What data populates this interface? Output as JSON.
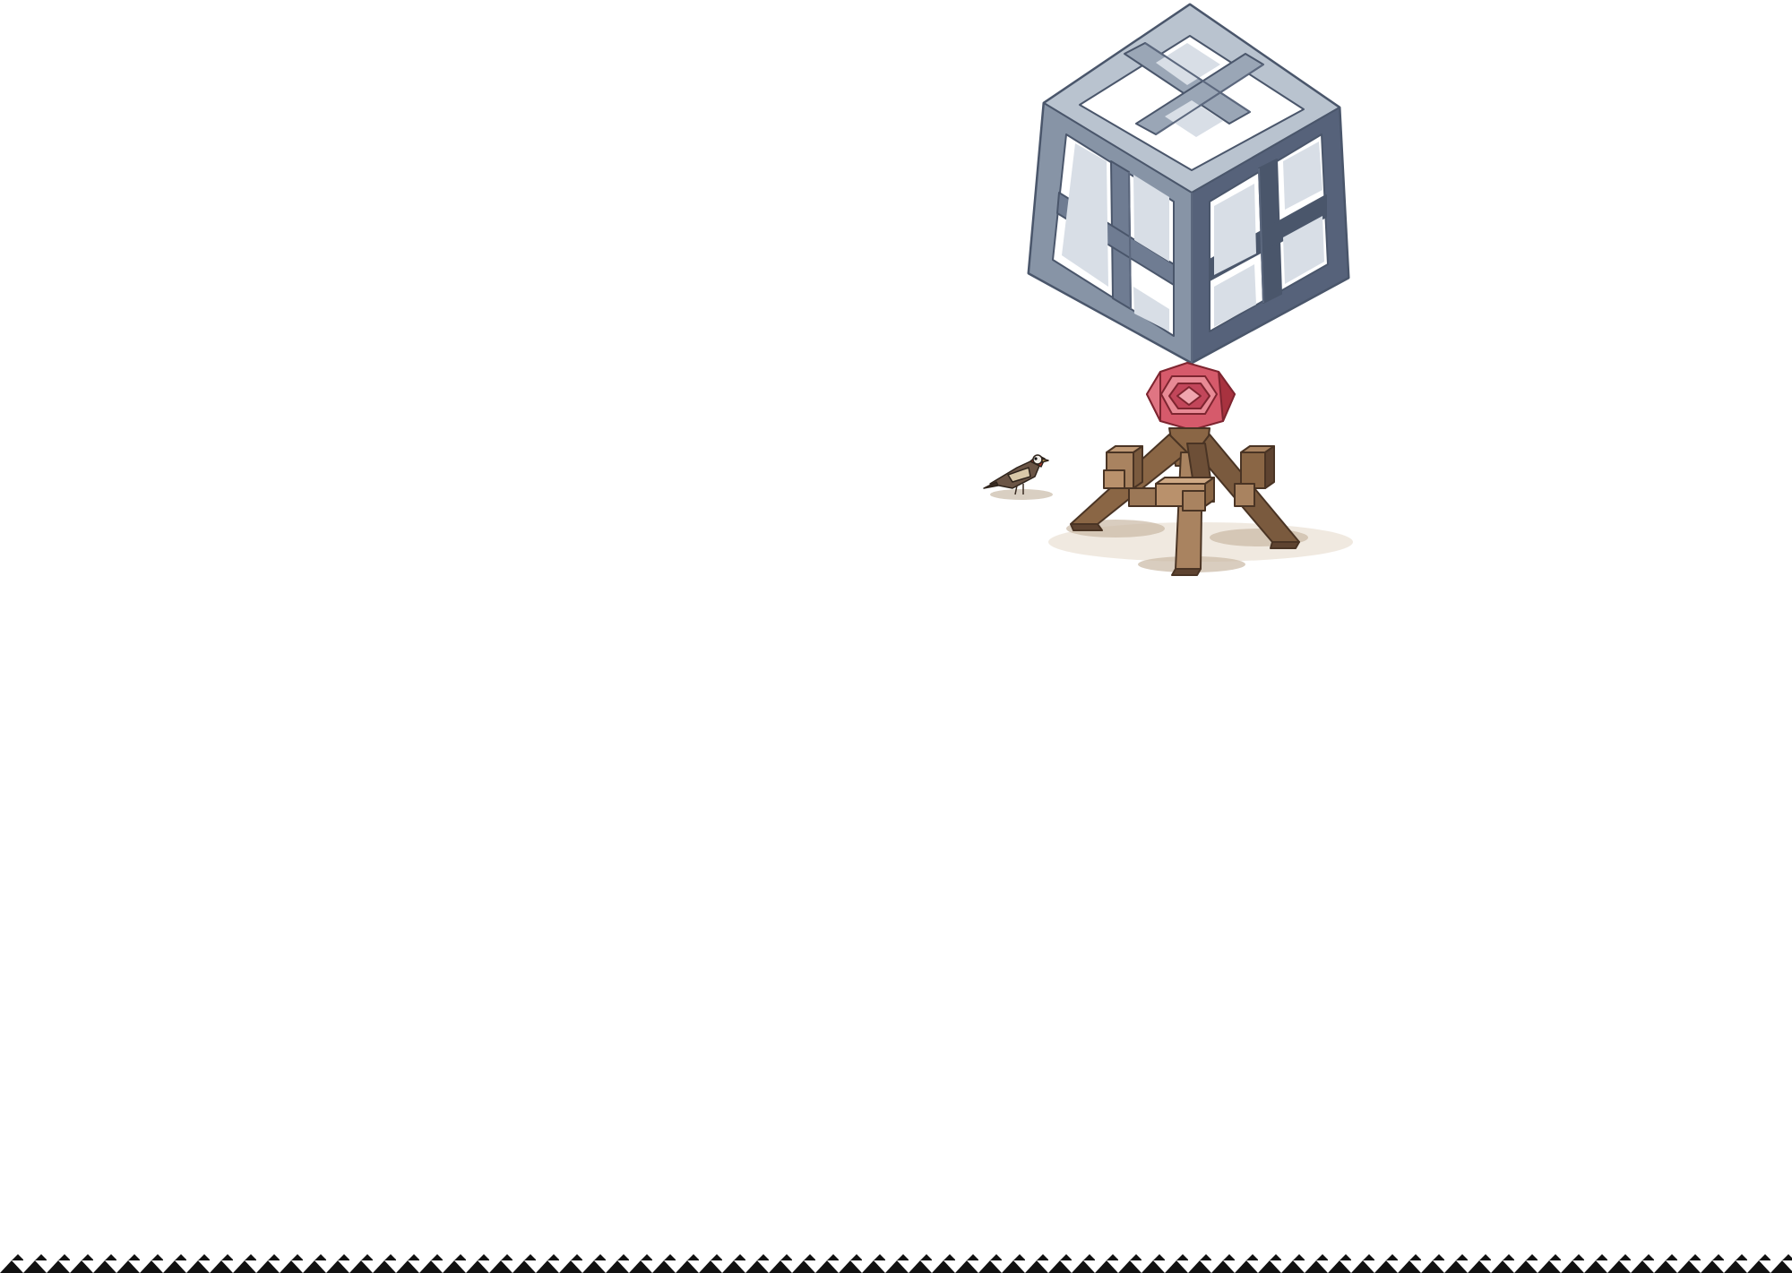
{
  "scene": {
    "main_subject": "lattice-cube-on-wooden-stand",
    "elements": [
      "lattice-cube",
      "red-crystal-knob",
      "wooden-stand",
      "small-bird"
    ],
    "colors": {
      "background": "#ffffff",
      "cube_light": "#b9c3cf",
      "cube_mid": "#8794a6",
      "cube_dark": "#56627a",
      "crystal_light": "#e88a95",
      "crystal_mid": "#d65a6b",
      "crystal_dark": "#a8323f",
      "wood_light": "#a98360",
      "wood_mid": "#8a6645",
      "wood_dark": "#5e4330",
      "ground_shadow": "#c9b8a4",
      "bird_body": "#6b5546",
      "bird_head": "#b3342b",
      "border": "#111111"
    }
  },
  "border": {
    "pattern": "zigzag-diamond"
  }
}
